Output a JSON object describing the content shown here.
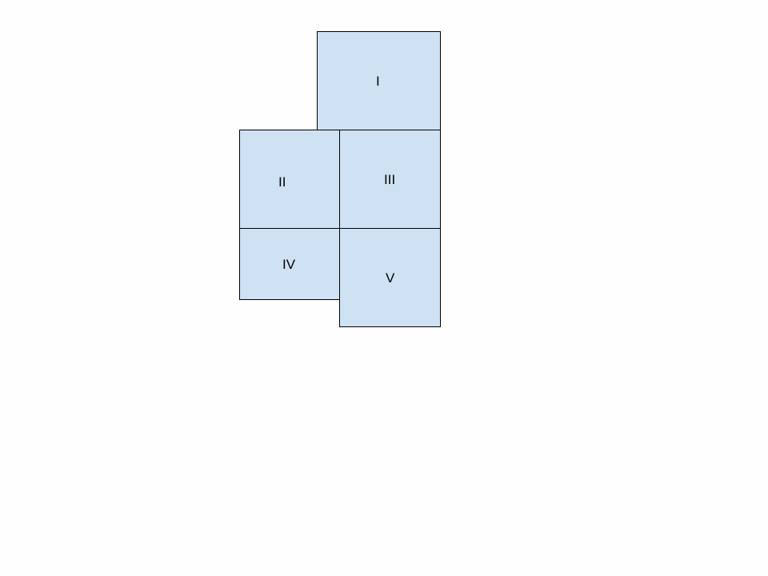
{
  "diagram": {
    "fill_color": "#cfe2f3",
    "border_color": "#000000",
    "boxes": [
      {
        "label": "I"
      },
      {
        "label": "II"
      },
      {
        "label": "III"
      },
      {
        "label": "IV"
      },
      {
        "label": "V"
      }
    ]
  }
}
